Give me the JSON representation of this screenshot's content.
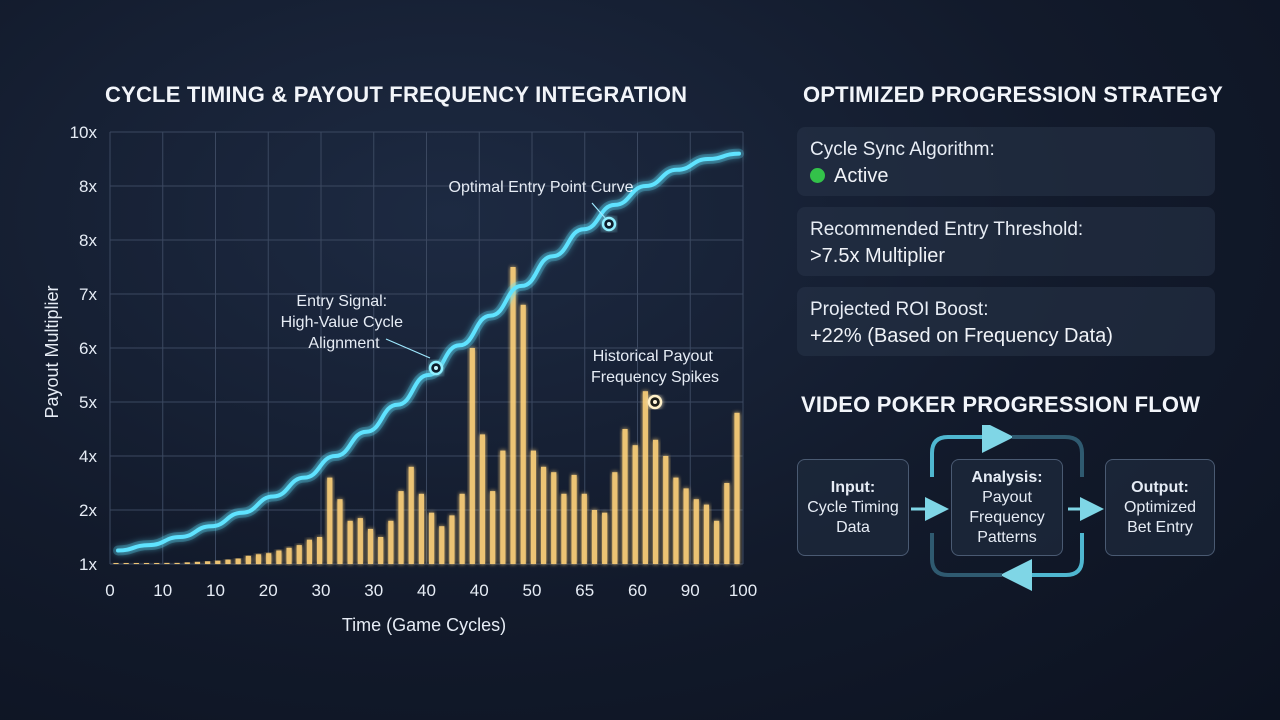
{
  "chart_data": {
    "type": "bar+line",
    "title": "CYCLE TIMING & PAYOUT FREQUENCY INTEGRATION",
    "xlabel": "Time (Game Cycles)",
    "ylabel": "Payout Multiplier",
    "x_tick_labels": [
      "0",
      "10",
      "10",
      "20",
      "30",
      "30",
      "40",
      "40",
      "50",
      "65",
      "60",
      "90",
      "100"
    ],
    "y_tick_labels": [
      "1x",
      "2x",
      "4x",
      "5x",
      "6x",
      "7x",
      "8x",
      "8x",
      "10x"
    ],
    "grid": true,
    "series": [
      {
        "name": "Optimal Entry Point Curve",
        "kind": "line",
        "color": "#5fe3ff",
        "values": [
          1.25,
          1.35,
          1.5,
          1.7,
          1.95,
          2.25,
          2.6,
          3.0,
          3.45,
          3.95,
          4.5,
          5.05,
          5.6,
          6.15,
          6.7,
          7.2,
          7.65,
          8.0,
          8.3,
          8.5,
          8.6
        ]
      },
      {
        "name": "Historical Payout Frequency Spikes",
        "kind": "bar",
        "color": "#ffd27a",
        "values": [
          1.0,
          1.0,
          1.0,
          1.01,
          1.01,
          1.02,
          1.02,
          1.03,
          1.04,
          1.05,
          1.06,
          1.08,
          1.1,
          1.15,
          1.18,
          1.2,
          1.25,
          1.3,
          1.35,
          1.45,
          1.5,
          2.6,
          2.2,
          1.8,
          1.85,
          1.65,
          1.5,
          1.8,
          2.35,
          2.8,
          2.3,
          1.95,
          1.7,
          1.9,
          2.3,
          5.0,
          3.4,
          2.35,
          3.1,
          6.5,
          5.8,
          3.1,
          2.8,
          2.7,
          2.3,
          2.65,
          2.3,
          2.0,
          1.95,
          2.7,
          3.5,
          3.2,
          4.2,
          3.3,
          3.0,
          2.6,
          2.4,
          2.2,
          2.1,
          1.8,
          2.5,
          3.8
        ]
      }
    ],
    "annotations": [
      {
        "text": "Optimal Entry Point Curve"
      },
      {
        "lines": [
          "Entry Signal:",
          "High-Value Cycle",
          "Alignment"
        ]
      },
      {
        "lines": [
          "Historical Payout",
          "Frequency Spikes"
        ]
      }
    ]
  },
  "strategy": {
    "title": "OPTIMIZED PROGRESSION STRATEGY",
    "cards": [
      {
        "label": "Cycle Sync Algorithm:",
        "value": "Active",
        "status_color": "#33c24a"
      },
      {
        "label": "Recommended Entry Threshold:",
        "value": ">7.5x Multiplier"
      },
      {
        "label": "Projected ROI Boost:",
        "value": "+22% (Based on Frequency Data)"
      }
    ]
  },
  "flow": {
    "title": "VIDEO POKER PROGRESSION FLOW",
    "input": {
      "head": "Input:",
      "lines": [
        "Cycle Timing",
        "Data"
      ]
    },
    "analysis": {
      "head": "Analysis:",
      "lines": [
        "Payout",
        "Frequency",
        "Patterns"
      ]
    },
    "output": {
      "head": "Output:",
      "lines": [
        "Optimized",
        "Bet Entry"
      ]
    }
  },
  "colors": {
    "line": "#5fe3ff",
    "bars": "#ffd27a",
    "accent": "#33c24a"
  }
}
